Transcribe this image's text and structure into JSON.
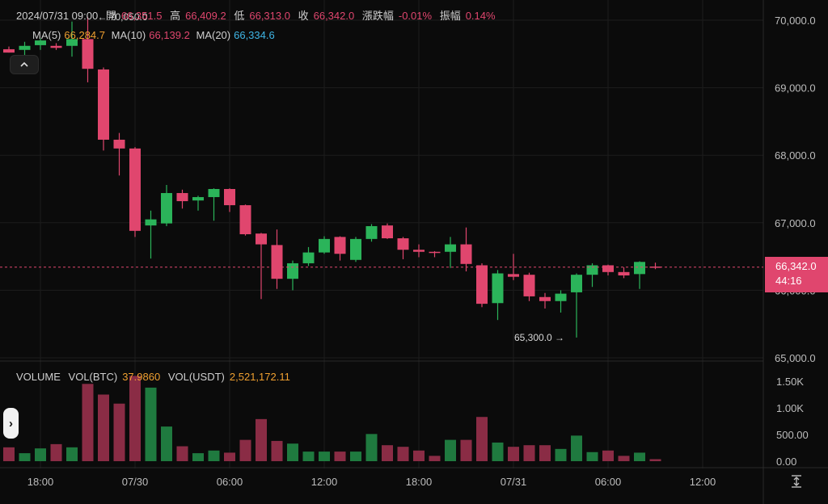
{
  "header": {
    "datetime": "2024/07/31 09:00",
    "open_label": "開",
    "open": "66,351.5",
    "high_label": "高",
    "high": "66,409.2",
    "low_label": "低",
    "low": "66,313.0",
    "close_label": "收",
    "close": "66,342.0",
    "change_label": "漲跌幅",
    "change": "-0.01%",
    "amp_label": "振幅",
    "amp": "0.14%"
  },
  "ma": {
    "ma5_label": "MA(5)",
    "ma5": "66,284.7",
    "ma10_label": "MA(10)",
    "ma10": "66,139.2",
    "ma20_label": "MA(20)",
    "ma20": "66,334.6"
  },
  "high_marker": "70,050.0",
  "low_marker": "65,300.0",
  "current_price": {
    "price": "66,342.0",
    "countdown": "44:16"
  },
  "volume_header": {
    "title": "VOLUME",
    "btc_label": "VOL(BTC)",
    "btc": "37.9860",
    "usdt_label": "VOL(USDT)",
    "usdt": "2,521,172.11"
  },
  "colors": {
    "up": "#2bb45a",
    "down": "#e0466e",
    "bg": "#0b0b0b",
    "grid": "#1c1c1c"
  },
  "icons": {
    "collapse": "chevron-up-icon",
    "expand": "chevron-right-icon",
    "scale": "vertical-scale-icon"
  },
  "chart_data": {
    "type": "candlestick",
    "price_axis": {
      "ticks": [
        "70,000.0",
        "69,000.0",
        "68,000.0",
        "67,000.0",
        "66,000.0",
        "65,000.0"
      ],
      "tick_values": [
        70000,
        69000,
        68000,
        67000,
        66000,
        65000
      ],
      "range": [
        65000,
        70200
      ]
    },
    "volume_axis": {
      "ticks": [
        "1.50K",
        "1.00K",
        "500.00",
        "0.00"
      ],
      "tick_values": [
        1500,
        1000,
        500,
        0
      ],
      "range": [
        0,
        1700
      ]
    },
    "time_axis": {
      "ticks": [
        "18:00",
        "07/30",
        "06:00",
        "12:00",
        "18:00",
        "07/31",
        "06:00",
        "12:00"
      ],
      "tick_index": [
        2,
        8,
        14,
        20,
        26,
        32,
        38,
        44
      ]
    },
    "candles": [
      {
        "o": 69570,
        "h": 69610,
        "l": 69520,
        "c": 69520,
        "v": 260
      },
      {
        "o": 69560,
        "h": 69680,
        "l": 69400,
        "c": 69620,
        "v": 150
      },
      {
        "o": 69630,
        "h": 69730,
        "l": 69560,
        "c": 69700,
        "v": 240
      },
      {
        "o": 69620,
        "h": 69660,
        "l": 69560,
        "c": 69590,
        "v": 320
      },
      {
        "o": 69620,
        "h": 69980,
        "l": 69460,
        "c": 69720,
        "v": 260
      },
      {
        "o": 69720,
        "h": 70050,
        "l": 69080,
        "c": 69280,
        "v": 1450
      },
      {
        "o": 69270,
        "h": 69300,
        "l": 68070,
        "c": 68230,
        "v": 1250
      },
      {
        "o": 68230,
        "h": 68330,
        "l": 67700,
        "c": 68100,
        "v": 1080
      },
      {
        "o": 68100,
        "h": 68120,
        "l": 66790,
        "c": 66880,
        "v": 1600
      },
      {
        "o": 66960,
        "h": 67180,
        "l": 66470,
        "c": 67050,
        "v": 1380
      },
      {
        "o": 66990,
        "h": 67560,
        "l": 66950,
        "c": 67440,
        "v": 650
      },
      {
        "o": 67440,
        "h": 67490,
        "l": 67210,
        "c": 67320,
        "v": 280
      },
      {
        "o": 67330,
        "h": 67400,
        "l": 67180,
        "c": 67380,
        "v": 150
      },
      {
        "o": 67380,
        "h": 67510,
        "l": 67030,
        "c": 67500,
        "v": 200
      },
      {
        "o": 67500,
        "h": 67510,
        "l": 67160,
        "c": 67260,
        "v": 160
      },
      {
        "o": 67260,
        "h": 67270,
        "l": 66810,
        "c": 66830,
        "v": 400
      },
      {
        "o": 66840,
        "h": 66850,
        "l": 65870,
        "c": 66680,
        "v": 790
      },
      {
        "o": 66670,
        "h": 66900,
        "l": 66020,
        "c": 66170,
        "v": 380
      },
      {
        "o": 66170,
        "h": 66440,
        "l": 66000,
        "c": 66400,
        "v": 330
      },
      {
        "o": 66400,
        "h": 66640,
        "l": 66360,
        "c": 66560,
        "v": 180
      },
      {
        "o": 66560,
        "h": 66800,
        "l": 66540,
        "c": 66760,
        "v": 180
      },
      {
        "o": 66790,
        "h": 66800,
        "l": 66440,
        "c": 66540,
        "v": 180
      },
      {
        "o": 66450,
        "h": 66790,
        "l": 66420,
        "c": 66760,
        "v": 180
      },
      {
        "o": 66760,
        "h": 66980,
        "l": 66720,
        "c": 66950,
        "v": 510
      },
      {
        "o": 66960,
        "h": 66990,
        "l": 66760,
        "c": 66770,
        "v": 300
      },
      {
        "o": 66770,
        "h": 66790,
        "l": 66460,
        "c": 66600,
        "v": 270
      },
      {
        "o": 66600,
        "h": 66680,
        "l": 66490,
        "c": 66570,
        "v": 200
      },
      {
        "o": 66570,
        "h": 66580,
        "l": 66490,
        "c": 66560,
        "v": 100
      },
      {
        "o": 66570,
        "h": 66790,
        "l": 66330,
        "c": 66680,
        "v": 400
      },
      {
        "o": 66680,
        "h": 66930,
        "l": 66280,
        "c": 66390,
        "v": 400
      },
      {
        "o": 66370,
        "h": 66400,
        "l": 65750,
        "c": 65800,
        "v": 830
      },
      {
        "o": 65810,
        "h": 66300,
        "l": 65560,
        "c": 66250,
        "v": 350
      },
      {
        "o": 66240,
        "h": 66540,
        "l": 66150,
        "c": 66200,
        "v": 270
      },
      {
        "o": 66230,
        "h": 66260,
        "l": 65840,
        "c": 65910,
        "v": 300
      },
      {
        "o": 65900,
        "h": 65960,
        "l": 65730,
        "c": 65840,
        "v": 300
      },
      {
        "o": 65840,
        "h": 66000,
        "l": 65670,
        "c": 65950,
        "v": 230
      },
      {
        "o": 65970,
        "h": 66250,
        "l": 65300,
        "c": 66230,
        "v": 480
      },
      {
        "o": 66230,
        "h": 66400,
        "l": 66050,
        "c": 66370,
        "v": 170
      },
      {
        "o": 66370,
        "h": 66380,
        "l": 66220,
        "c": 66270,
        "v": 200
      },
      {
        "o": 66270,
        "h": 66340,
        "l": 66180,
        "c": 66220,
        "v": 100
      },
      {
        "o": 66240,
        "h": 66430,
        "l": 66020,
        "c": 66420,
        "v": 160
      },
      {
        "o": 66351.5,
        "h": 66409.2,
        "l": 66313,
        "c": 66342,
        "v": 38
      }
    ]
  }
}
